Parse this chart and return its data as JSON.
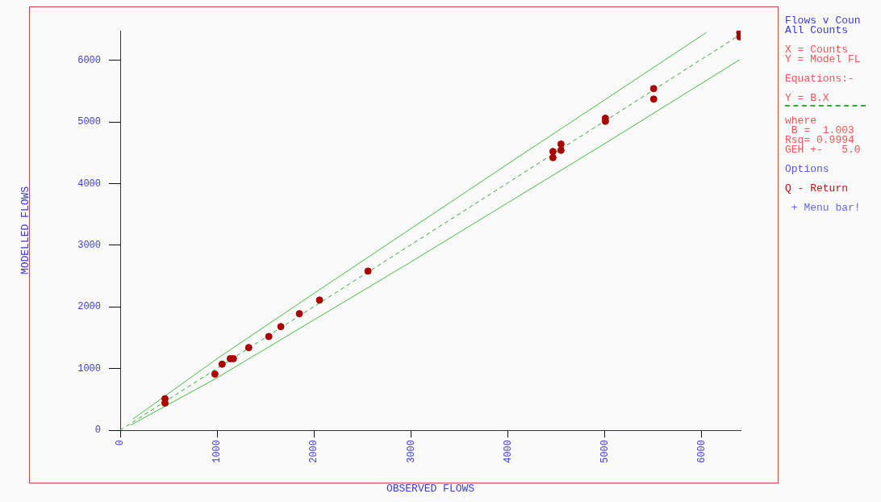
{
  "chart_data": {
    "type": "scatter",
    "xlabel": "OBSERVED FLOWS",
    "ylabel": "MODELLED FLOWS",
    "xlim": [
      0,
      6400
    ],
    "ylim": [
      0,
      6480
    ],
    "xticks": [
      0,
      1000,
      2000,
      3000,
      4000,
      5000,
      6000
    ],
    "yticks": [
      0,
      1000,
      2000,
      3000,
      4000,
      5000,
      6000
    ],
    "grid": false,
    "legend": "right",
    "annotations": [
      "Flows v Coun",
      "All Counts",
      "X = Counts",
      "Y = Model FL",
      "Equations:-",
      "where",
      " B =  1.003",
      "Rsq= 0.9994",
      "GEH +-   5.0",
      "Options",
      "Q - Return",
      " + Menu bar!"
    ],
    "series": [
      {
        "type": "scatter",
        "marker": "circle",
        "color": "#aa0000",
        "x": [
          462,
          462,
          977,
          1051,
          1135,
          1168,
          1326,
          1533,
          1657,
          1848,
          2056,
          2556,
          4464,
          4464,
          4547,
          4547,
          5005,
          5005,
          5503,
          5503,
          6391,
          6391
        ],
        "values": [
          510,
          440,
          910,
          1070,
          1160,
          1160,
          1340,
          1520,
          1680,
          1890,
          2110,
          2580,
          4520,
          4420,
          4640,
          4540,
          5060,
          5010,
          5540,
          5370,
          6450,
          6380
        ]
      },
      {
        "type": "line",
        "name": "Y = B.X",
        "color": "#33aa33",
        "line_style": "dashed",
        "x": [
          0,
          6391
        ],
        "values": [
          0,
          6410
        ]
      },
      {
        "type": "line",
        "color": "#44bb44",
        "line_style": "solid",
        "x": [
          130,
          1000,
          2000,
          3000,
          4000,
          5000,
          6046
        ],
        "values": [
          180,
          1160,
          2220,
          3270,
          4320,
          5360,
          6450
        ]
      },
      {
        "type": "line",
        "color": "#44bb44",
        "line_style": "solid",
        "x": [
          106,
          1000,
          2000,
          3000,
          4000,
          5000,
          6391
        ],
        "values": [
          80,
          850,
          1790,
          2730,
          3690,
          4650,
          6010
        ]
      }
    ]
  }
}
